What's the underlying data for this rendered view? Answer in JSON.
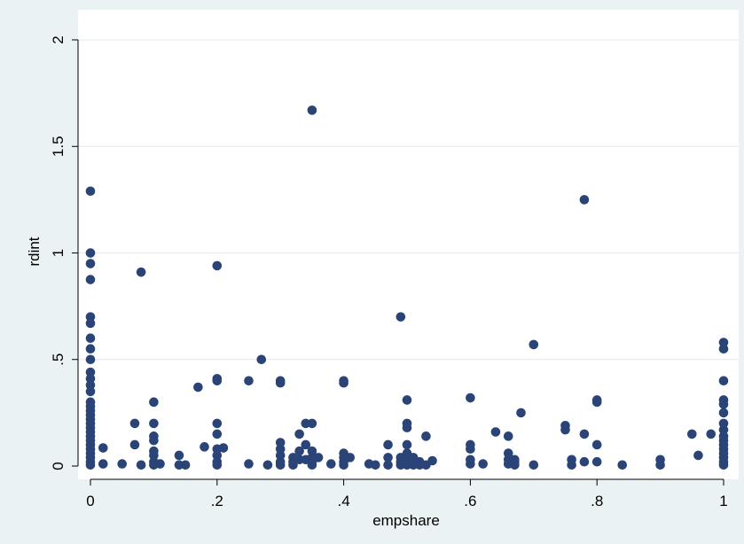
{
  "chart_data": {
    "type": "scatter",
    "title": "",
    "xlabel": "empshare",
    "ylabel": "rdint",
    "xlim": [
      0,
      1
    ],
    "ylim": [
      0,
      2
    ],
    "x_ticks": [
      {
        "value": 0,
        "label": "0"
      },
      {
        "value": 0.2,
        "label": ".2"
      },
      {
        "value": 0.4,
        "label": ".4"
      },
      {
        "value": 0.6,
        "label": ".6"
      },
      {
        "value": 0.8,
        "label": ".8"
      },
      {
        "value": 1,
        "label": "1"
      }
    ],
    "y_ticks": [
      {
        "value": 0,
        "label": "0"
      },
      {
        "value": 0.5,
        "label": ".5"
      },
      {
        "value": 1,
        "label": "1"
      },
      {
        "value": 1.5,
        "label": "1.5"
      },
      {
        "value": 2,
        "label": "2"
      }
    ],
    "grid": "horizontal",
    "legend": "none",
    "colors": {
      "marker": "#2a4478",
      "background": "#eaf2f3",
      "plot_area": "#ffffff",
      "grid": "#e6eef2"
    },
    "series": [
      {
        "points": [
          [
            0,
            1.29
          ],
          [
            0,
            1.0
          ],
          [
            0,
            0.95
          ],
          [
            0,
            0.875
          ],
          [
            0,
            0.7
          ],
          [
            0,
            0.67
          ],
          [
            0,
            0.6
          ],
          [
            0,
            0.55
          ],
          [
            0,
            0.5
          ],
          [
            0,
            0.44
          ],
          [
            0,
            0.41
          ],
          [
            0,
            0.38
          ],
          [
            0,
            0.35
          ],
          [
            0,
            0.3
          ],
          [
            0,
            0.28
          ],
          [
            0,
            0.26
          ],
          [
            0,
            0.24
          ],
          [
            0,
            0.22
          ],
          [
            0,
            0.2
          ],
          [
            0,
            0.18
          ],
          [
            0,
            0.16
          ],
          [
            0,
            0.14
          ],
          [
            0,
            0.12
          ],
          [
            0,
            0.1
          ],
          [
            0,
            0.08
          ],
          [
            0,
            0.06
          ],
          [
            0,
            0.04
          ],
          [
            0,
            0.02
          ],
          [
            0,
            0.005
          ],
          [
            0.02,
            0.085
          ],
          [
            0.02,
            0.01
          ],
          [
            0.05,
            0.01
          ],
          [
            0.07,
            0.2
          ],
          [
            0.07,
            0.1
          ],
          [
            0.08,
            0.91
          ],
          [
            0.08,
            0.005
          ],
          [
            0.1,
            0.3
          ],
          [
            0.1,
            0.2
          ],
          [
            0.1,
            0.14
          ],
          [
            0.1,
            0.12
          ],
          [
            0.1,
            0.07
          ],
          [
            0.1,
            0.05
          ],
          [
            0.1,
            0.02
          ],
          [
            0.1,
            0.005
          ],
          [
            0.11,
            0.01
          ],
          [
            0.14,
            0.05
          ],
          [
            0.14,
            0.005
          ],
          [
            0.15,
            0.005
          ],
          [
            0.17,
            0.37
          ],
          [
            0.18,
            0.09
          ],
          [
            0.2,
            0.94
          ],
          [
            0.2,
            0.41
          ],
          [
            0.2,
            0.4
          ],
          [
            0.2,
            0.2
          ],
          [
            0.2,
            0.15
          ],
          [
            0.2,
            0.08
          ],
          [
            0.2,
            0.05
          ],
          [
            0.2,
            0.02
          ],
          [
            0.2,
            0.005
          ],
          [
            0.21,
            0.085
          ],
          [
            0.25,
            0.4
          ],
          [
            0.25,
            0.01
          ],
          [
            0.27,
            0.5
          ],
          [
            0.28,
            0.005
          ],
          [
            0.3,
            0.4
          ],
          [
            0.3,
            0.39
          ],
          [
            0.3,
            0.11
          ],
          [
            0.3,
            0.08
          ],
          [
            0.3,
            0.05
          ],
          [
            0.3,
            0.02
          ],
          [
            0.3,
            0.005
          ],
          [
            0.32,
            0.04
          ],
          [
            0.32,
            0.02
          ],
          [
            0.32,
            0.005
          ],
          [
            0.33,
            0.15
          ],
          [
            0.33,
            0.07
          ],
          [
            0.33,
            0.03
          ],
          [
            0.34,
            0.2
          ],
          [
            0.34,
            0.1
          ],
          [
            0.34,
            0.03
          ],
          [
            0.35,
            1.67
          ],
          [
            0.35,
            0.2
          ],
          [
            0.35,
            0.07
          ],
          [
            0.35,
            0.04
          ],
          [
            0.35,
            0.02
          ],
          [
            0.35,
            0.005
          ],
          [
            0.36,
            0.04
          ],
          [
            0.38,
            0.01
          ],
          [
            0.4,
            0.4
          ],
          [
            0.4,
            0.39
          ],
          [
            0.4,
            0.06
          ],
          [
            0.4,
            0.04
          ],
          [
            0.4,
            0.02
          ],
          [
            0.4,
            0.005
          ],
          [
            0.41,
            0.04
          ],
          [
            0.44,
            0.01
          ],
          [
            0.45,
            0.005
          ],
          [
            0.47,
            0.1
          ],
          [
            0.47,
            0.04
          ],
          [
            0.47,
            0.005
          ],
          [
            0.49,
            0.7
          ],
          [
            0.49,
            0.04
          ],
          [
            0.49,
            0.02
          ],
          [
            0.49,
            0.005
          ],
          [
            0.5,
            0.31
          ],
          [
            0.5,
            0.2
          ],
          [
            0.5,
            0.18
          ],
          [
            0.5,
            0.1
          ],
          [
            0.5,
            0.06
          ],
          [
            0.5,
            0.04
          ],
          [
            0.5,
            0.02
          ],
          [
            0.5,
            0.005
          ],
          [
            0.51,
            0.04
          ],
          [
            0.51,
            0.02
          ],
          [
            0.51,
            0.005
          ],
          [
            0.52,
            0.02
          ],
          [
            0.52,
            0.005
          ],
          [
            0.53,
            0.14
          ],
          [
            0.53,
            0.005
          ],
          [
            0.54,
            0.025
          ],
          [
            0.6,
            0.32
          ],
          [
            0.6,
            0.1
          ],
          [
            0.6,
            0.08
          ],
          [
            0.6,
            0.03
          ],
          [
            0.6,
            0.01
          ],
          [
            0.62,
            0.01
          ],
          [
            0.64,
            0.16
          ],
          [
            0.66,
            0.14
          ],
          [
            0.66,
            0.06
          ],
          [
            0.66,
            0.03
          ],
          [
            0.66,
            0.01
          ],
          [
            0.67,
            0.03
          ],
          [
            0.67,
            0.02
          ],
          [
            0.67,
            0.005
          ],
          [
            0.68,
            0.25
          ],
          [
            0.7,
            0.57
          ],
          [
            0.7,
            0.005
          ],
          [
            0.75,
            0.19
          ],
          [
            0.75,
            0.17
          ],
          [
            0.76,
            0.03
          ],
          [
            0.76,
            0.005
          ],
          [
            0.78,
            1.25
          ],
          [
            0.78,
            0.15
          ],
          [
            0.78,
            0.02
          ],
          [
            0.8,
            0.31
          ],
          [
            0.8,
            0.3
          ],
          [
            0.8,
            0.1
          ],
          [
            0.8,
            0.02
          ],
          [
            0.84,
            0.005
          ],
          [
            0.9,
            0.03
          ],
          [
            0.9,
            0.005
          ],
          [
            0.95,
            0.15
          ],
          [
            0.96,
            0.05
          ],
          [
            0.98,
            0.15
          ],
          [
            1,
            0.58
          ],
          [
            1,
            0.55
          ],
          [
            1,
            0.4
          ],
          [
            1,
            0.31
          ],
          [
            1,
            0.29
          ],
          [
            1,
            0.25
          ],
          [
            1,
            0.2
          ],
          [
            1,
            0.17
          ],
          [
            1,
            0.14
          ],
          [
            1,
            0.12
          ],
          [
            1,
            0.1
          ],
          [
            1,
            0.08
          ],
          [
            1,
            0.06
          ],
          [
            1,
            0.04
          ],
          [
            1,
            0.02
          ],
          [
            1,
            0.005
          ]
        ]
      }
    ]
  }
}
